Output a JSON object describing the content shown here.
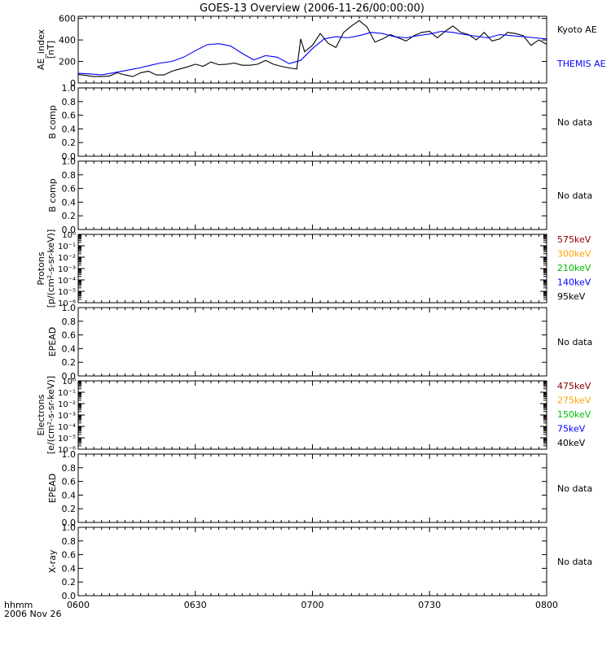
{
  "title": "GOES-13 Overview (2006-11-26/00:00:00)",
  "time_axis": {
    "tick_labels": [
      "0600",
      "0630",
      "0700",
      "0730",
      "0800"
    ],
    "tick_minutes": [
      360,
      390,
      420,
      450,
      480
    ],
    "range_minutes": [
      360,
      480
    ],
    "corner_label_1": "hhmm",
    "corner_label_2": "2006 Nov 26"
  },
  "panels": [
    {
      "id": "ae",
      "ylabel_lines": [
        "AE_index",
        "[nT]"
      ],
      "y_range": [
        0,
        620
      ],
      "y_ticks": [
        0,
        200,
        400,
        600
      ],
      "y_tick_labels": [
        "0",
        "200",
        "400",
        "600"
      ],
      "legend": [
        {
          "label": "Kyoto AE",
          "color": "#000000"
        },
        {
          "label": "THEMIS AE",
          "color": "#0000ff"
        }
      ]
    },
    {
      "id": "bcomp1",
      "ylabel_lines": [
        "B comp"
      ],
      "y_range": [
        0,
        1
      ],
      "y_ticks": [
        0,
        0.2,
        0.4,
        0.6,
        0.8,
        1.0
      ],
      "y_tick_labels": [
        "0.0",
        "0.2",
        "0.4",
        "0.6",
        "0.8",
        "1.0"
      ],
      "status": "No data"
    },
    {
      "id": "bcomp2",
      "ylabel_lines": [
        "B comp"
      ],
      "y_range": [
        0,
        1
      ],
      "y_ticks": [
        0,
        0.2,
        0.4,
        0.6,
        0.8,
        1.0
      ],
      "y_tick_labels": [
        "0.0",
        "0.2",
        "0.4",
        "0.6",
        "0.8",
        "1.0"
      ],
      "status": "No data"
    },
    {
      "id": "protons",
      "ylabel_lines": [
        "Protons",
        "[p/(cm²-s-sr-keV)]"
      ],
      "log": true,
      "y_range_exp": [
        -6,
        0
      ],
      "y_tick_exps": [
        0,
        -1,
        -2,
        -3,
        -4,
        -5,
        -6
      ],
      "y_tick_labels": [
        "10⁰",
        "10⁻¹",
        "10⁻²",
        "10⁻³",
        "10⁻⁴",
        "10⁻⁵",
        "10⁻⁶"
      ],
      "legend": [
        {
          "label": "575keV",
          "color": "#8b0000"
        },
        {
          "label": "300keV",
          "color": "#ffa500"
        },
        {
          "label": "210keV",
          "color": "#00c000"
        },
        {
          "label": "140keV",
          "color": "#0000ff"
        },
        {
          "label": "95keV",
          "color": "#000000"
        }
      ]
    },
    {
      "id": "epead1",
      "ylabel_lines": [
        "EPEAD"
      ],
      "y_range": [
        0,
        1
      ],
      "y_ticks": [
        0,
        0.2,
        0.4,
        0.6,
        0.8,
        1.0
      ],
      "y_tick_labels": [
        "0.0",
        "0.2",
        "0.4",
        "0.6",
        "0.8",
        "1.0"
      ],
      "status": "No data"
    },
    {
      "id": "electrons",
      "ylabel_lines": [
        "Electrons",
        "[e/(cm²-s-sr-keV)]"
      ],
      "log": true,
      "y_range_exp": [
        -6,
        0
      ],
      "y_tick_exps": [
        0,
        -1,
        -2,
        -3,
        -4,
        -5,
        -6
      ],
      "y_tick_labels": [
        "10⁰",
        "10⁻¹",
        "10⁻²",
        "10⁻³",
        "10⁻⁴",
        "10⁻⁵",
        "10⁻⁶"
      ],
      "legend": [
        {
          "label": "475keV",
          "color": "#8b0000"
        },
        {
          "label": "275keV",
          "color": "#ffa500"
        },
        {
          "label": "150keV",
          "color": "#00c000"
        },
        {
          "label": "75keV",
          "color": "#0000ff"
        },
        {
          "label": "40keV",
          "color": "#000000"
        }
      ]
    },
    {
      "id": "epead2",
      "ylabel_lines": [
        "EPEAD"
      ],
      "y_range": [
        0,
        1
      ],
      "y_ticks": [
        0,
        0.2,
        0.4,
        0.6,
        0.8,
        1.0
      ],
      "y_tick_labels": [
        "0.0",
        "0.2",
        "0.4",
        "0.6",
        "0.8",
        "1.0"
      ],
      "status": "No data"
    },
    {
      "id": "xray",
      "ylabel_lines": [
        "X-ray"
      ],
      "y_range": [
        0,
        1
      ],
      "y_ticks": [
        0,
        0.2,
        0.4,
        0.6,
        0.8,
        1.0
      ],
      "y_tick_labels": [
        "0.0",
        "0.2",
        "0.4",
        "0.6",
        "0.8",
        "1.0"
      ],
      "status": "No data"
    }
  ],
  "chart_data": {
    "type": "line",
    "title": "GOES-13 Overview (2006-11-26/00:00:00)",
    "x_unit": "minutes since 00:00 UT",
    "xlim": [
      360,
      480
    ],
    "ylabel": "AE_index [nT]",
    "ylim": [
      0,
      620
    ],
    "series": [
      {
        "name": "Kyoto AE",
        "color": "#000000",
        "x": [
          360,
          362,
          364,
          366,
          368,
          370,
          372,
          374,
          376,
          378,
          380,
          382,
          384,
          386,
          388,
          390,
          392,
          394,
          396,
          398,
          400,
          402,
          404,
          406,
          408,
          410,
          412,
          414,
          416,
          417,
          418,
          420,
          422,
          424,
          426,
          428,
          430,
          432,
          434,
          436,
          438,
          440,
          442,
          444,
          446,
          448,
          450,
          452,
          454,
          456,
          458,
          460,
          462,
          464,
          466,
          468,
          470,
          472,
          474,
          476,
          478,
          480
        ],
        "y": [
          80,
          70,
          60,
          60,
          65,
          95,
          75,
          60,
          95,
          110,
          75,
          75,
          110,
          130,
          150,
          175,
          155,
          195,
          170,
          175,
          185,
          165,
          165,
          175,
          210,
          175,
          155,
          140,
          130,
          410,
          290,
          350,
          460,
          370,
          330,
          470,
          530,
          580,
          520,
          380,
          410,
          450,
          420,
          390,
          440,
          470,
          480,
          420,
          480,
          530,
          470,
          450,
          400,
          470,
          390,
          410,
          470,
          460,
          440,
          350,
          400,
          360
        ]
      },
      {
        "name": "THEMIS AE",
        "color": "#0000ff",
        "x": [
          360,
          363,
          366,
          369,
          372,
          375,
          378,
          381,
          384,
          387,
          390,
          393,
          396,
          399,
          402,
          405,
          408,
          411,
          414,
          417,
          420,
          423,
          426,
          429,
          432,
          435,
          438,
          441,
          444,
          447,
          450,
          453,
          456,
          459,
          462,
          465,
          468,
          471,
          474,
          477,
          480
        ],
        "y": [
          90,
          85,
          75,
          95,
          115,
          135,
          160,
          185,
          200,
          240,
          300,
          355,
          365,
          345,
          275,
          215,
          255,
          240,
          180,
          210,
          320,
          410,
          430,
          420,
          440,
          470,
          460,
          430,
          420,
          440,
          455,
          480,
          470,
          450,
          435,
          420,
          450,
          440,
          430,
          420,
          410
        ]
      }
    ]
  }
}
